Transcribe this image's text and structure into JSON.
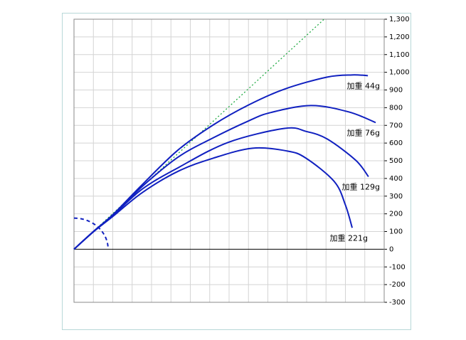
{
  "chart_data": {
    "type": "line",
    "xlim": [
      0,
      1600
    ],
    "xticks": [
      0,
      100,
      200,
      300,
      400,
      500,
      600,
      700,
      800,
      900,
      1000,
      1100,
      1200,
      1300,
      1400,
      1500,
      1600
    ],
    "ylim": [
      -300,
      1300
    ],
    "yticks": [
      -300,
      -200,
      -100,
      0,
      100,
      200,
      300,
      400,
      500,
      600,
      700,
      800,
      900,
      {
        "value": 1000,
        "label": "1,000"
      },
      {
        "value": 1100,
        "label": "1,100"
      },
      {
        "value": 1200,
        "label": "1,200"
      },
      {
        "value": 1300,
        "label": "1,300"
      }
    ],
    "grid": true,
    "reference_line": {
      "color": "#22aa44",
      "x": [
        0,
        1290
      ],
      "values": [
        0,
        1300
      ]
    },
    "reference_arc": {
      "color": "#1020c0",
      "radius": 176
    },
    "series": [
      {
        "name": "加重 44g",
        "color": "#1020c0",
        "x": [
          0,
          100,
          200,
          352,
          536,
          719,
          900,
          1086,
          1306,
          1435,
          1516
        ],
        "values": [
          0,
          100,
          195,
          365,
          560,
          703,
          815,
          905,
          973,
          985,
          981
        ]
      },
      {
        "name": "加重 76g",
        "color": "#1020c0",
        "x": [
          0,
          100,
          200,
          352,
          536,
          719,
          900,
          1013,
          1222,
          1417,
          1556
        ],
        "values": [
          0,
          100,
          193,
          355,
          520,
          630,
          725,
          772,
          812,
          776,
          716
        ]
      },
      {
        "name": "加重 129g",
        "color": "#1020c0",
        "x": [
          0,
          100,
          200,
          352,
          536,
          793,
          1086,
          1200,
          1306,
          1453,
          1519
        ],
        "values": [
          0,
          99,
          190,
          340,
          460,
          603,
          683,
          665,
          623,
          503,
          410
        ]
      },
      {
        "name": "加重 221g",
        "color": "#1020c0",
        "x": [
          0,
          100,
          200,
          352,
          536,
          719,
          921,
          1100,
          1196,
          1343,
          1400,
          1435
        ],
        "values": [
          0,
          98,
          185,
          320,
          440,
          515,
          571,
          555,
          515,
          382,
          250,
          121
        ]
      }
    ]
  }
}
